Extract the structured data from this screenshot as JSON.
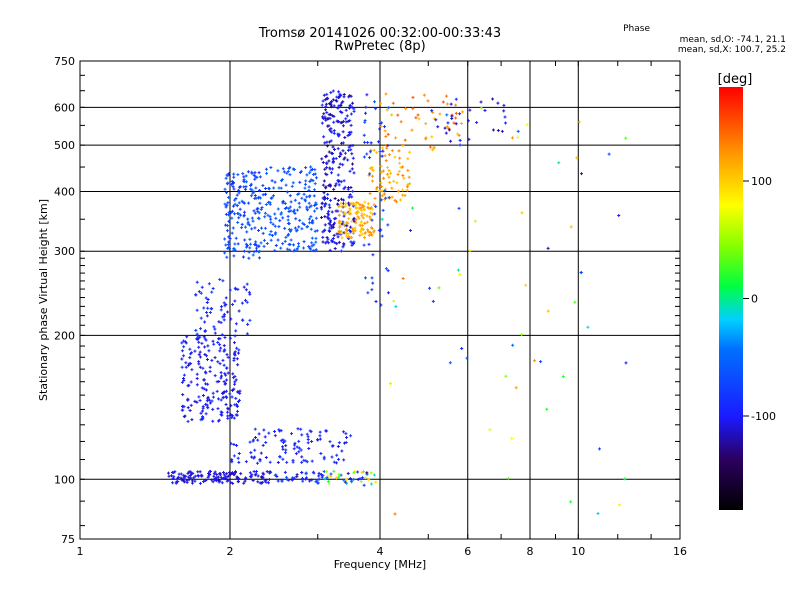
{
  "chart_data": {
    "type": "scatter",
    "title": "Tromsø 20141026 00:32:00-00:33:43",
    "subtitle": "RwPretec (8p)",
    "xlabel": "Frequency [MHz]",
    "ylabel": "Stationary phase Virtual Height [km]",
    "x_scale": "log",
    "y_scale": "log",
    "xlim": [
      1,
      16
    ],
    "ylim": [
      75,
      750
    ],
    "x_ticks": [
      1,
      2,
      4,
      6,
      8,
      10,
      16
    ],
    "x_tick_labels": [
      "1",
      "2",
      "4",
      "6",
      "8",
      "10",
      "16"
    ],
    "y_ticks": [
      75,
      100,
      200,
      300,
      400,
      500,
      600,
      750
    ],
    "y_tick_labels": [
      "75",
      "100",
      "200",
      "300",
      "400",
      "500",
      "600",
      "750"
    ],
    "grid": true,
    "colorbar": {
      "label": "[deg]",
      "range": [
        -180,
        180
      ],
      "ticks": [
        100,
        0,
        -100
      ],
      "tick_labels": [
        "100",
        "0",
        "-100"
      ]
    },
    "stats_header": "Phase",
    "stats_o": "mean, sd,O: -74.1, 21.1",
    "stats_x": "mean, sd,X: 100.7, 25.2",
    "clusters": [
      {
        "f": [
          1.5,
          2.4
        ],
        "h": [
          98,
          104
        ],
        "phase": [
          -120,
          -95
        ],
        "n": 140
      },
      {
        "f": [
          2.4,
          3.1
        ],
        "h": [
          98,
          104
        ],
        "phase": [
          -120,
          -60
        ],
        "n": 40
      },
      {
        "f": [
          3.1,
          4.0
        ],
        "h": [
          97,
          104
        ],
        "phase": [
          -140,
          120
        ],
        "n": 40
      },
      {
        "f": [
          2.0,
          3.5
        ],
        "h": [
          108,
          128
        ],
        "phase": [
          -110,
          -80
        ],
        "n": 110
      },
      {
        "f": [
          1.6,
          2.1
        ],
        "h": [
          132,
          200
        ],
        "phase": [
          -115,
          -85
        ],
        "n": 220
      },
      {
        "f": [
          1.7,
          2.2
        ],
        "h": [
          200,
          262
        ],
        "phase": [
          -110,
          -75
        ],
        "n": 70
      },
      {
        "f": [
          1.95,
          2.3
        ],
        "h": [
          290,
          440
        ],
        "phase": [
          -90,
          -50
        ],
        "n": 160
      },
      {
        "f": [
          2.3,
          3.0
        ],
        "h": [
          300,
          450
        ],
        "phase": [
          -80,
          -50
        ],
        "n": 200
      },
      {
        "f": [
          3.05,
          3.55
        ],
        "h": [
          300,
          650
        ],
        "phase": [
          -130,
          -85
        ],
        "n": 290
      },
      {
        "f": [
          3.3,
          3.9
        ],
        "h": [
          320,
          380
        ],
        "phase": [
          95,
          130
        ],
        "n": 120
      },
      {
        "f": [
          3.8,
          4.6
        ],
        "h": [
          380,
          500
        ],
        "phase": [
          100,
          135
        ],
        "n": 70
      },
      {
        "f": [
          4.0,
          6.0
        ],
        "h": [
          480,
          640
        ],
        "phase": [
          100,
          150
        ],
        "n": 50
      },
      {
        "f": [
          3.7,
          4.2
        ],
        "h": [
          230,
          640
        ],
        "phase": [
          -100,
          -60
        ],
        "n": 50
      },
      {
        "f": [
          5.0,
          7.2
        ],
        "h": [
          500,
          630
        ],
        "phase": [
          -120,
          -90
        ],
        "n": 30
      },
      {
        "f": [
          4.0,
          13.0
        ],
        "h": [
          80,
          600
        ],
        "phase": [
          -120,
          150
        ],
        "n": 60
      }
    ]
  }
}
